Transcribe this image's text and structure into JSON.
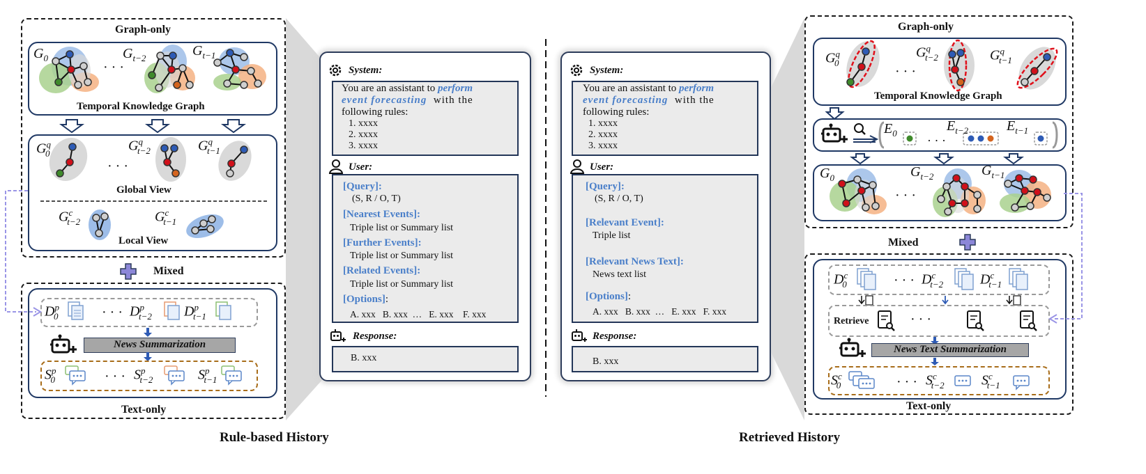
{
  "left": {
    "graph_only_title": "Graph-only",
    "tkg_caption": "Temporal Knowledge Graph",
    "global_view": "Global View",
    "local_view": "Local View",
    "mixed": "Mixed",
    "text_only": "Text-only",
    "news_summarization": "News Summarization",
    "caption": "Rule-based History",
    "ellipsis": "· · ·"
  },
  "right": {
    "graph_only_title": "Graph-only",
    "tkg_caption": "Temporal Knowledge Graph",
    "mixed": "Mixed",
    "text_only": "Text-only",
    "retrieve": "Retrieve",
    "news_text_summarization": "News Text Summarization",
    "caption": "Retrieved History",
    "ellipsis": "· · ·"
  },
  "prompt_left": {
    "system_label": "System:",
    "system_text_1": "You are an assistant to",
    "system_text_em1": "perform",
    "system_text_em2": "event forecasting",
    "system_text_2": "with the",
    "system_text_3": "following rules:",
    "rules": [
      "1. xxxx",
      "2. xxxx",
      "3. xxxx"
    ],
    "user_label": "User:",
    "query_head": "[Query]:",
    "query_val": "(S, R / O, T)",
    "nearest_head": "[Nearest Events]:",
    "nearest_val": "Triple list or Summary list",
    "further_head": "[Further Events]:",
    "further_val": "Triple list or Summary list",
    "related_head": "[Related Events]:",
    "related_val": "Triple list or Summary list",
    "options_head": "[Options]",
    "options_colon": ":",
    "options_val": "A. xxx   B. xxx  …   E. xxx    F. xxx",
    "response_label": "Response:",
    "response_val": "B. xxx"
  },
  "prompt_right": {
    "system_label": "System:",
    "system_text_1": "You are an assistant to",
    "system_text_em1": "perform",
    "system_text_em2": "event forecasting",
    "system_text_2": "with the",
    "system_text_3": "following rules:",
    "rules": [
      "1. xxxx",
      "2. xxxx",
      "3. xxxx"
    ],
    "user_label": "User:",
    "query_head": "[Query]:",
    "query_val": "(S, R / O, T)",
    "relevant_event_head": "[Relevant Event]:",
    "relevant_event_val": "Triple list",
    "relevant_news_head": "[Relevant News Text]:",
    "relevant_news_val": "News text list",
    "options_head": "[Options]",
    "options_colon": ":",
    "options_val": "A. xxx   B. xxx  …   E. xxx   F. xxx",
    "response_label": "Response:",
    "response_val": "B. xxx"
  },
  "colors": {
    "node_red": "#d0101a",
    "node_blue": "#2e5bb5",
    "node_green": "#3f8a2b",
    "node_orange": "#d4641e",
    "node_gray": "#cfcfcf",
    "blob_blue": "#9dbde8",
    "blob_green": "#a9d18e",
    "blob_orange": "#f4b183",
    "blob_gray": "#d9d9d9",
    "accent_blue": "#4a7fc9",
    "plus_purple": "#8c87d8",
    "summary_bar": "#a6a6a6",
    "dashed_brown": "#a86d1a"
  },
  "icons": [
    "gear-icon",
    "user-icon",
    "robot-icon",
    "document-icon",
    "chat-bubble-icon",
    "magnifier-icon",
    "search-document-icon",
    "plus-icon",
    "down-arrow-icon"
  ]
}
